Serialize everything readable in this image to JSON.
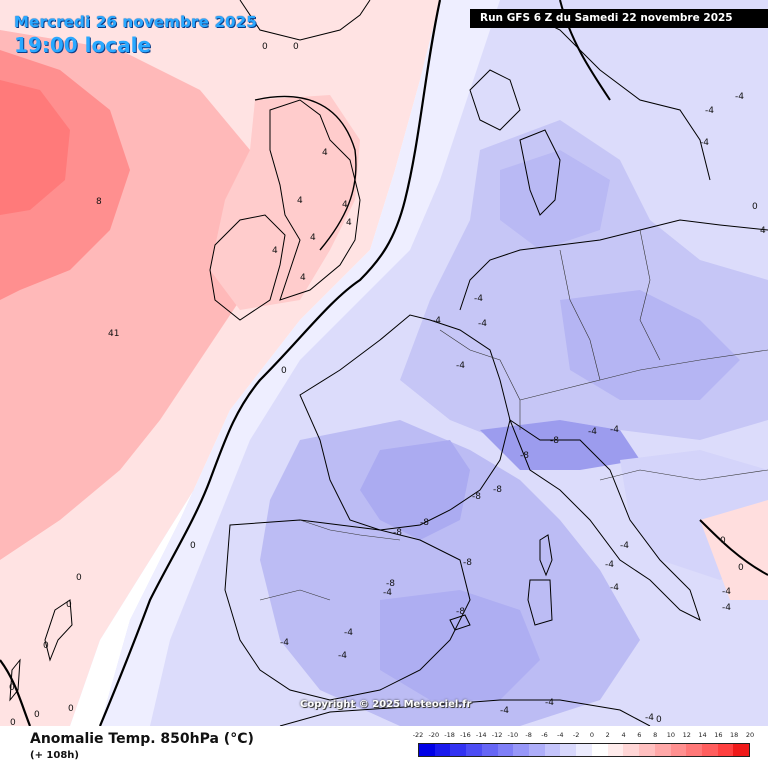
{
  "header": {
    "date": "Mercredi 26 novembre 2025",
    "time": "19:00 locale",
    "run": "Run GFS 6 Z du Samedi 22 novembre 2025"
  },
  "copyright": "Copyright © 2025 Meteociel.fr",
  "footer": {
    "title": "Anomalie Temp. 850hPa (°C)",
    "subtitle": "(+ 108h)"
  },
  "legend": {
    "labels": [
      "-22",
      "-20",
      "-18",
      "-16",
      "-14",
      "-12",
      "-10",
      "-8",
      "-6",
      "-4",
      "-2",
      "0",
      "2",
      "4",
      "6",
      "8",
      "10",
      "12",
      "14",
      "16",
      "18",
      "20"
    ],
    "colors": [
      "#0000e6",
      "#1a1aee",
      "#3333f2",
      "#4d4df4",
      "#6666f5",
      "#7f7ff7",
      "#9797f8",
      "#aeaef9",
      "#c4c4fb",
      "#d8d8fc",
      "#ececfe",
      "#ffffff",
      "#ffecec",
      "#ffd6d6",
      "#ffc0c0",
      "#ffa8a8",
      "#ff9090",
      "#ff7878",
      "#ff5e5e",
      "#ff4040",
      "#f01a1a"
    ]
  },
  "map_labels": [
    "0",
    "0",
    "4",
    "4",
    "4",
    "8",
    "4",
    "4",
    "4",
    "4",
    "41",
    "0",
    "0",
    "0",
    "0",
    "0",
    "0",
    "0",
    "0",
    "0",
    "-4",
    "-4",
    "-4",
    "-4",
    "-4",
    "-4",
    "-4",
    "-4",
    "-4",
    "-8",
    "-8",
    "-8",
    "-8",
    "-8",
    "-8",
    "-8",
    "-8",
    "-8",
    "-4",
    "-4",
    "-4",
    "-4",
    "-4",
    "-4",
    "-4",
    "-4",
    "-4",
    "-4",
    "0",
    "0",
    "0",
    "0",
    "4",
    "-4",
    "-4"
  ]
}
